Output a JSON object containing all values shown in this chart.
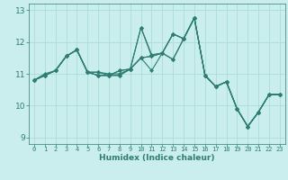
{
  "title": "",
  "xlabel": "Humidex (Indice chaleur)",
  "background_color": "#caeeed",
  "line_color": "#2e7d72",
  "grid_color": "#b0dedd",
  "xlim": [
    -0.5,
    23.5
  ],
  "ylim": [
    8.8,
    13.2
  ],
  "yticks": [
    9,
    10,
    11,
    12,
    13
  ],
  "xticks": [
    0,
    1,
    2,
    3,
    4,
    5,
    6,
    7,
    8,
    9,
    10,
    11,
    12,
    13,
    14,
    15,
    16,
    17,
    18,
    19,
    20,
    21,
    22,
    23
  ],
  "series": [
    [
      10.8,
      11.0,
      11.1,
      11.55,
      11.75,
      11.05,
      11.05,
      11.0,
      11.0,
      11.15,
      12.45,
      11.6,
      11.65,
      12.25,
      12.1,
      12.75,
      10.95,
      10.6,
      10.75,
      9.9,
      9.35,
      9.8,
      10.35,
      10.35
    ],
    [
      10.8,
      10.95,
      11.1,
      11.55,
      11.75,
      11.05,
      11.05,
      10.95,
      10.95,
      11.15,
      11.5,
      11.55,
      11.65,
      12.25,
      12.1,
      12.75,
      10.95,
      10.6,
      10.75,
      9.9,
      9.35,
      9.8,
      10.35,
      10.35
    ],
    [
      10.8,
      10.95,
      11.1,
      11.55,
      11.75,
      11.05,
      10.95,
      10.95,
      10.95,
      11.15,
      11.5,
      11.1,
      11.65,
      11.45,
      12.1,
      12.75,
      10.95,
      10.6,
      10.75,
      9.9,
      9.35,
      9.8,
      10.35,
      10.35
    ],
    [
      10.8,
      10.95,
      11.1,
      11.55,
      11.75,
      11.05,
      10.95,
      10.95,
      11.1,
      11.15,
      12.45,
      11.55,
      11.65,
      12.25,
      12.1,
      12.75,
      10.95,
      10.6,
      10.75,
      9.9,
      9.35,
      9.8,
      10.35,
      10.35
    ],
    [
      10.8,
      10.95,
      11.1,
      11.55,
      11.75,
      11.05,
      10.95,
      10.95,
      11.1,
      11.15,
      11.5,
      11.55,
      11.65,
      11.45,
      12.1,
      12.75,
      10.95,
      10.6,
      10.75,
      9.9,
      9.35,
      9.8,
      10.35,
      10.35
    ]
  ]
}
